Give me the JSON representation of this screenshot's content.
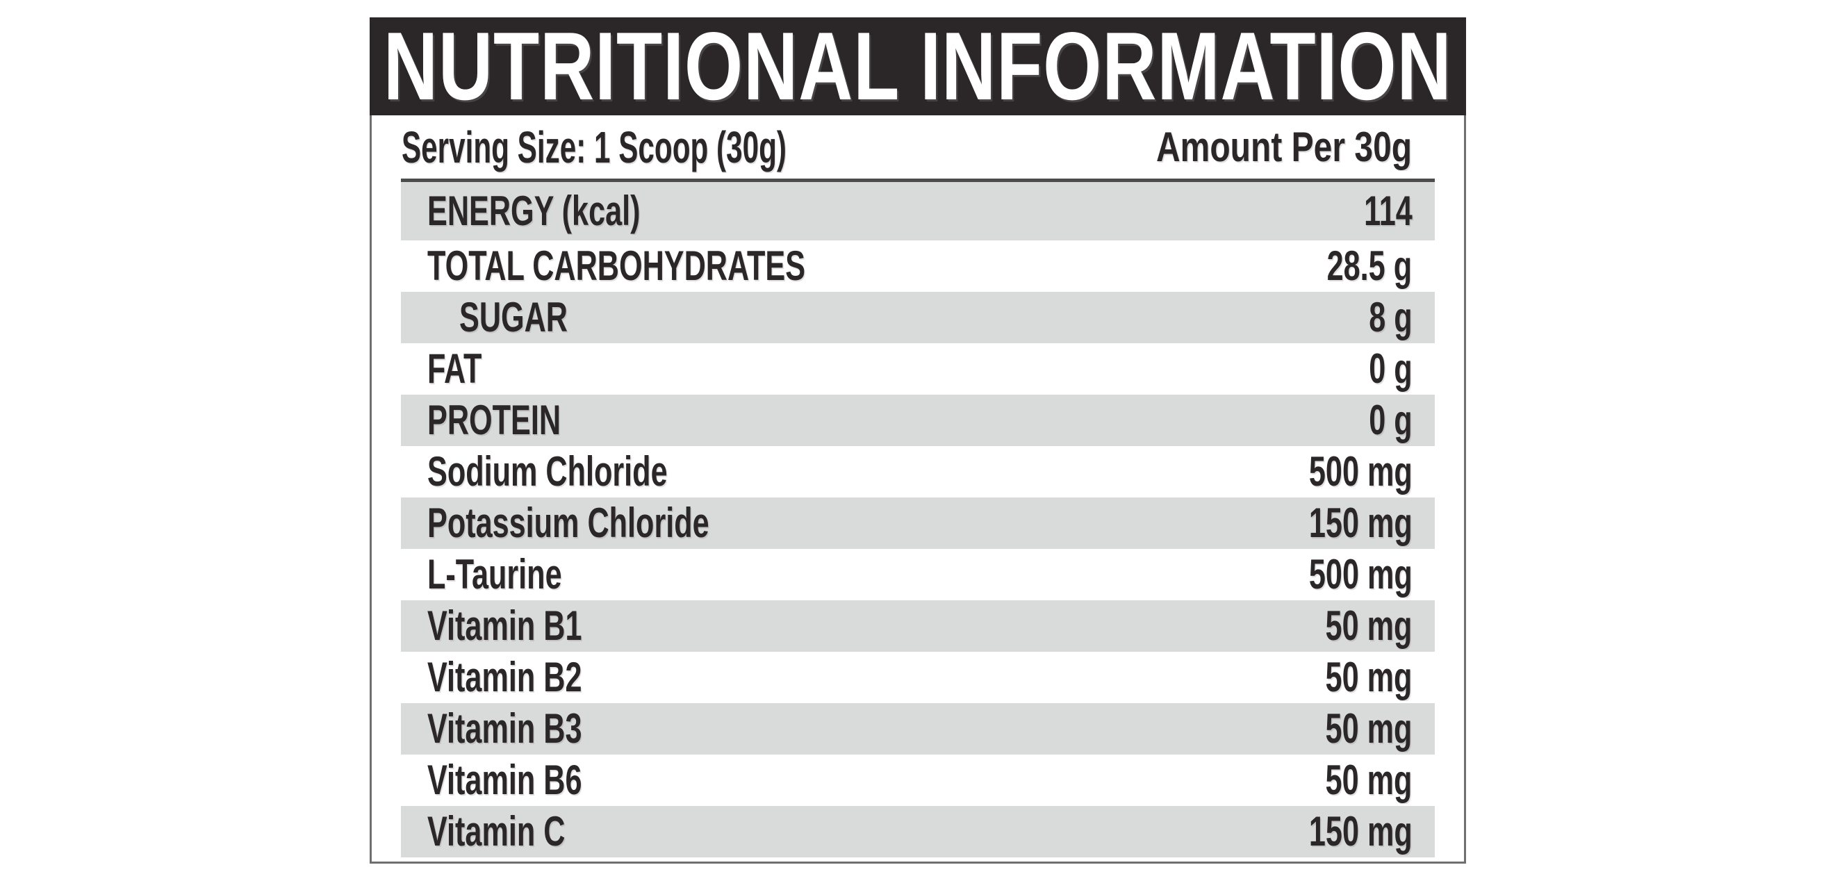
{
  "label": {
    "title": "NUTRITIONAL INFORMATION",
    "serving_size": "Serving Size: 1 Scoop (30g)",
    "amount_per": "Amount Per 30g",
    "rows": [
      {
        "name": "ENERGY (kcal)",
        "value": "114",
        "indent": false
      },
      {
        "name": "TOTAL CARBOHYDRATES",
        "value": "28.5 g",
        "indent": false
      },
      {
        "name": "SUGAR",
        "value": "8 g",
        "indent": true
      },
      {
        "name": "FAT",
        "value": "0 g",
        "indent": false
      },
      {
        "name": "PROTEIN",
        "value": "0 g",
        "indent": false
      },
      {
        "name": "Sodium Chloride",
        "value": "500 mg",
        "indent": false
      },
      {
        "name": "Potassium Chloride",
        "value": "150 mg",
        "indent": false
      },
      {
        "name": "L-Taurine",
        "value": "500 mg",
        "indent": false
      },
      {
        "name": "Vitamin B1",
        "value": "50 mg",
        "indent": false
      },
      {
        "name": "Vitamin B2",
        "value": "50 mg",
        "indent": false
      },
      {
        "name": "Vitamin B3",
        "value": "50 mg",
        "indent": false
      },
      {
        "name": "Vitamin B6",
        "value": "50 mg",
        "indent": false
      },
      {
        "name": "Vitamin C",
        "value": "150 mg",
        "indent": false
      }
    ],
    "colors": {
      "header_bg": "#2b2627",
      "title_text": "#ffffff",
      "text": "#2b2728",
      "row_alt_bg": "#d9dada",
      "border": "#6f6f6f",
      "divider": "#4c4c4c"
    }
  }
}
